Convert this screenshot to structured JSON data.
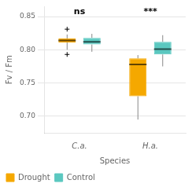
{
  "chart_data": {
    "type": "box",
    "xlabel": "Species",
    "ylabel": "Fv / Fm",
    "categories": [
      "C.a.",
      "H.a."
    ],
    "series": [
      {
        "name": "Drought",
        "color": "#F5A800",
        "values": [
          {
            "q1": 0.811,
            "median": 0.814,
            "q3": 0.817,
            "whisker_low": 0.8,
            "whisker_high": 0.823,
            "fliers": [
              0.793,
              0.831
            ]
          },
          {
            "q1": 0.73,
            "median": 0.778,
            "q3": 0.787,
            "whisker_low": 0.695,
            "whisker_high": 0.792,
            "fliers": []
          }
        ]
      },
      {
        "name": "Control",
        "color": "#5BC8C0",
        "values": [
          {
            "q1": 0.808,
            "median": 0.812,
            "q3": 0.818,
            "whisker_low": 0.797,
            "whisker_high": 0.824,
            "fliers": []
          },
          {
            "q1": 0.793,
            "median": 0.801,
            "q3": 0.812,
            "whisker_low": 0.775,
            "whisker_high": 0.822,
            "fliers": []
          }
        ]
      }
    ],
    "annotations": [
      {
        "text": "ns",
        "x": "C.a.",
        "y": 0.851
      },
      {
        "text": "***",
        "x": "H.a.",
        "y": 0.851
      }
    ],
    "ylim": [
      0.675,
      0.865
    ],
    "yticks": [
      {
        "value": 0.7,
        "label": "0.70"
      },
      0.75,
      {
        "value": 0.8,
        "label": "0.80"
      },
      0.85
    ],
    "grid": true,
    "legend": "lower left"
  }
}
